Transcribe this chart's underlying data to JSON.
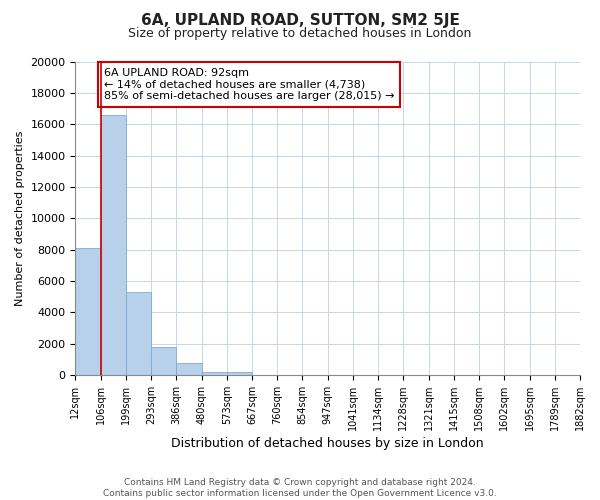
{
  "title": "6A, UPLAND ROAD, SUTTON, SM2 5JE",
  "subtitle": "Size of property relative to detached houses in London",
  "xlabel": "Distribution of detached houses by size in London",
  "ylabel": "Number of detached properties",
  "bar_values": [
    8100,
    16600,
    5300,
    1800,
    750,
    200,
    150,
    0,
    0,
    0,
    0,
    0,
    0,
    0,
    0,
    0,
    0,
    0,
    0,
    0
  ],
  "bar_labels": [
    "12sqm",
    "106sqm",
    "199sqm",
    "293sqm",
    "386sqm",
    "480sqm",
    "573sqm",
    "667sqm",
    "760sqm",
    "854sqm",
    "947sqm",
    "1041sqm",
    "1134sqm",
    "1228sqm",
    "1321sqm",
    "1415sqm",
    "1508sqm",
    "1602sqm",
    "1695sqm",
    "1789sqm",
    "1882sqm"
  ],
  "bar_color": "#b8d0ea",
  "bar_edge_color": "#7aadd4",
  "property_line_x": 1,
  "property_line_color": "#cc0000",
  "annotation_title": "6A UPLAND ROAD: 92sqm",
  "annotation_line1": "← 14% of detached houses are smaller (4,738)",
  "annotation_line2": "85% of semi-detached houses are larger (28,015) →",
  "annotation_box_color": "#ffffff",
  "annotation_box_edge_color": "#cc0000",
  "ylim": [
    0,
    20000
  ],
  "yticks": [
    0,
    2000,
    4000,
    6000,
    8000,
    10000,
    12000,
    14000,
    16000,
    18000,
    20000
  ],
  "footer_line1": "Contains HM Land Registry data © Crown copyright and database right 2024.",
  "footer_line2": "Contains public sector information licensed under the Open Government Licence v3.0.",
  "background_color": "#ffffff",
  "grid_color": "#c8d4e8"
}
